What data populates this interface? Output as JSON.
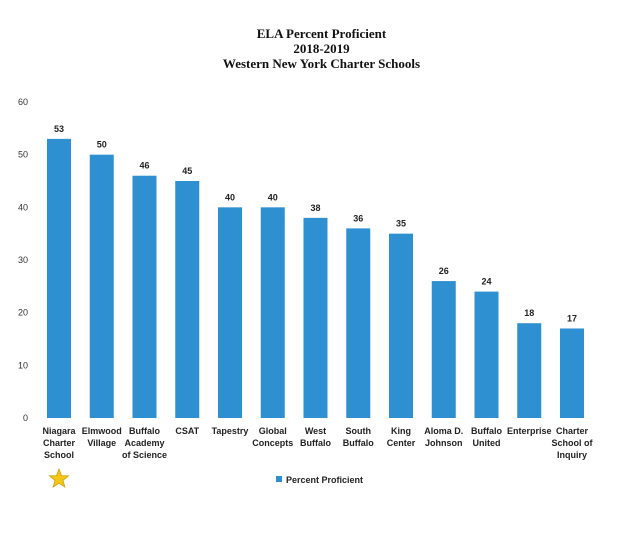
{
  "chart_data": {
    "type": "bar",
    "title_lines": [
      "ELA Percent Proficient",
      "2018-2019",
      "Western New York Charter Schools"
    ],
    "xlabel": "",
    "ylabel": "",
    "ylim": [
      0,
      60
    ],
    "yticks": [
      0,
      10,
      20,
      30,
      40,
      50,
      60
    ],
    "categories": [
      "Niagara Charter School",
      "Elmwood Village",
      "Buffalo Academy of Science",
      "CSAT",
      "Tapestry",
      "Global Concepts",
      "West Buffalo",
      "South Buffalo",
      "King Center",
      "Aloma D. Johnson",
      "Buffalo United",
      "Enterprise",
      "Charter School of Inquiry"
    ],
    "category_lines": [
      [
        "Niagara",
        "Charter",
        "School"
      ],
      [
        "Elmwood",
        "Village"
      ],
      [
        "Buffalo",
        "Academy",
        "of Science"
      ],
      [
        "CSAT"
      ],
      [
        "Tapestry"
      ],
      [
        "Global",
        "Concepts"
      ],
      [
        "West",
        "Buffalo"
      ],
      [
        "South",
        "Buffalo"
      ],
      [
        "King",
        "Center"
      ],
      [
        "Aloma D.",
        "Johnson"
      ],
      [
        "Buffalo",
        "United"
      ],
      [
        "Enterprise"
      ],
      [
        "Charter",
        "School of",
        "Inquiry"
      ]
    ],
    "series": [
      {
        "name": "Percent Proficient",
        "values": [
          53,
          50,
          46,
          45,
          40,
          40,
          38,
          36,
          35,
          26,
          24,
          18,
          17
        ],
        "color": "#2e8fd1"
      }
    ],
    "grid": false,
    "legend_position": "bottom",
    "data_labels": true,
    "highlight": {
      "category_index": 0,
      "icon": "star-icon",
      "color": "#f5c518"
    }
  }
}
